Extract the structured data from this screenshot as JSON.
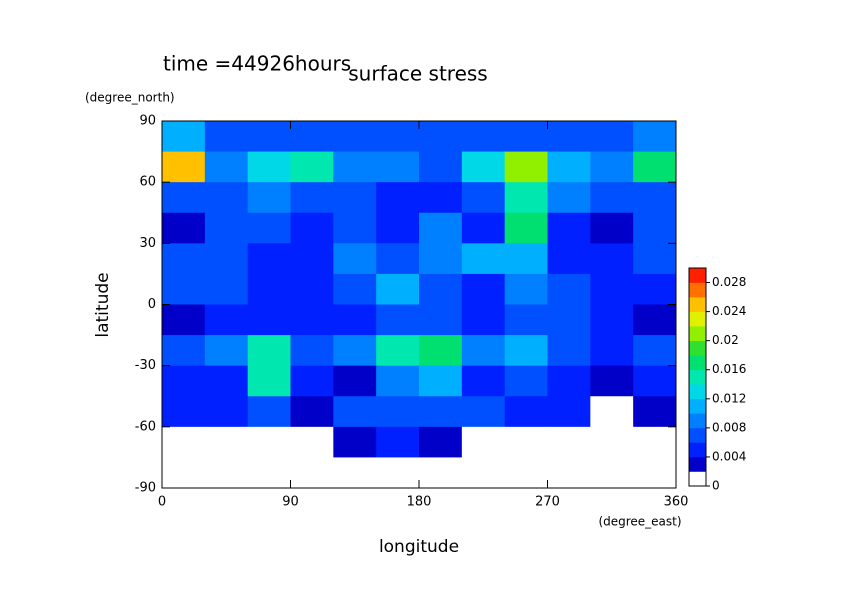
{
  "chart_data": {
    "type": "contour",
    "title": "surface stress",
    "subtitle": "time =44926hours",
    "x_label": "longitude",
    "x_unit": "(degree_east)",
    "y_label": "latitude",
    "y_unit": "(degree_north)",
    "xlim": [
      0,
      360
    ],
    "xticks": [
      0,
      90,
      180,
      270,
      360
    ],
    "ylim": [
      -90,
      90
    ],
    "yticks": [
      -90,
      -60,
      -30,
      0,
      30,
      60,
      90
    ],
    "x": [
      15,
      45,
      75,
      105,
      135,
      165,
      195,
      225,
      255,
      285,
      315,
      345
    ],
    "y": [
      82.5,
      67.5,
      52.5,
      37.5,
      22.5,
      7.5,
      -7.5,
      -22.5,
      -37.5,
      -52.5,
      -67.5,
      -82.5
    ],
    "values": [
      [
        0.01,
        0.006,
        0.006,
        0.006,
        0.006,
        0.006,
        0.006,
        0.006,
        0.006,
        0.006,
        0.006,
        0.008
      ],
      [
        0.024,
        0.008,
        0.012,
        0.014,
        0.008,
        0.008,
        0.006,
        0.012,
        0.02,
        0.01,
        0.008,
        0.016
      ],
      [
        0.006,
        0.006,
        0.008,
        0.006,
        0.006,
        0.004,
        0.004,
        0.006,
        0.014,
        0.008,
        0.006,
        0.006
      ],
      [
        0.002,
        0.006,
        0.006,
        0.004,
        0.006,
        0.004,
        0.008,
        0.004,
        0.016,
        0.004,
        0.002,
        0.006
      ],
      [
        0.006,
        0.006,
        0.004,
        0.004,
        0.008,
        0.006,
        0.008,
        0.01,
        0.01,
        0.004,
        0.004,
        0.006
      ],
      [
        0.006,
        0.006,
        0.004,
        0.004,
        0.006,
        0.01,
        0.006,
        0.004,
        0.008,
        0.006,
        0.004,
        0.004
      ],
      [
        0.002,
        0.004,
        0.004,
        0.004,
        0.004,
        0.006,
        0.006,
        0.004,
        0.006,
        0.006,
        0.004,
        0.002
      ],
      [
        0.006,
        0.008,
        0.014,
        0.006,
        0.008,
        0.014,
        0.016,
        0.008,
        0.01,
        0.006,
        0.004,
        0.006
      ],
      [
        0.004,
        0.004,
        0.014,
        0.004,
        0.002,
        0.008,
        0.01,
        0.004,
        0.006,
        0.004,
        0.002,
        0.004
      ],
      [
        0.004,
        0.004,
        0.006,
        0.002,
        0.006,
        0.006,
        0.006,
        0.006,
        0.004,
        0.004,
        0,
        0.002
      ],
      [
        0,
        0,
        0,
        0,
        0.002,
        0.004,
        0.002,
        0,
        0,
        0,
        0,
        0
      ],
      [
        0,
        0,
        0,
        0,
        0,
        0,
        0,
        0,
        0,
        0,
        0,
        0
      ]
    ],
    "levels": [
      0,
      0.002,
      0.004,
      0.006,
      0.008,
      0.01,
      0.012,
      0.014,
      0.016,
      0.018,
      0.02,
      0.022,
      0.024,
      0.026,
      0.028,
      0.03
    ],
    "colors": [
      "#ffffff",
      "#0000c8",
      "#0020ff",
      "#0050ff",
      "#0080ff",
      "#00b0ff",
      "#00d8e8",
      "#00e8b0",
      "#00e070",
      "#30e030",
      "#90f000",
      "#e0f000",
      "#ffc000",
      "#ff7000",
      "#ff2000"
    ],
    "colorbar_lim": [
      0,
      0.03
    ],
    "colorbar_ticks": [
      0,
      0.004,
      0.008,
      0.012,
      0.016,
      0.02,
      0.024,
      0.028
    ]
  }
}
